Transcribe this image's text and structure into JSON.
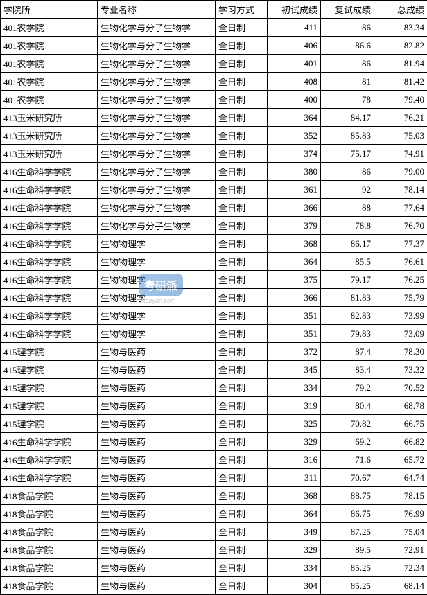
{
  "table": {
    "headers": {
      "school": "学院所",
      "major": "专业名称",
      "mode": "学习方式",
      "score1": "初试成绩",
      "score2": "复试成绩",
      "score3": "总成绩"
    },
    "rows": [
      {
        "school": "401农学院",
        "major": "生物化学与分子生物学",
        "mode": "全日制",
        "score1": "411",
        "score2": "86",
        "score3": "83.34"
      },
      {
        "school": "401农学院",
        "major": "生物化学与分子生物学",
        "mode": "全日制",
        "score1": "406",
        "score2": "86.6",
        "score3": "82.82"
      },
      {
        "school": "401农学院",
        "major": "生物化学与分子生物学",
        "mode": "全日制",
        "score1": "401",
        "score2": "86",
        "score3": "81.94"
      },
      {
        "school": "401农学院",
        "major": "生物化学与分子生物学",
        "mode": "全日制",
        "score1": "408",
        "score2": "81",
        "score3": "81.42"
      },
      {
        "school": "401农学院",
        "major": "生物化学与分子生物学",
        "mode": "全日制",
        "score1": "400",
        "score2": "78",
        "score3": "79.40"
      },
      {
        "school": "413玉米研究所",
        "major": "生物化学与分子生物学",
        "mode": "全日制",
        "score1": "364",
        "score2": "84.17",
        "score3": "76.21"
      },
      {
        "school": "413玉米研究所",
        "major": "生物化学与分子生物学",
        "mode": "全日制",
        "score1": "352",
        "score2": "85.83",
        "score3": "75.03"
      },
      {
        "school": "413玉米研究所",
        "major": "生物化学与分子生物学",
        "mode": "全日制",
        "score1": "374",
        "score2": "75.17",
        "score3": "74.91"
      },
      {
        "school": "416生命科学学院",
        "major": "生物化学与分子生物学",
        "mode": "全日制",
        "score1": "380",
        "score2": "86",
        "score3": "79.00"
      },
      {
        "school": "416生命科学学院",
        "major": "生物化学与分子生物学",
        "mode": "全日制",
        "score1": "361",
        "score2": "92",
        "score3": "78.14"
      },
      {
        "school": "416生命科学学院",
        "major": "生物化学与分子生物学",
        "mode": "全日制",
        "score1": "366",
        "score2": "88",
        "score3": "77.64"
      },
      {
        "school": "416生命科学学院",
        "major": "生物化学与分子生物学",
        "mode": "全日制",
        "score1": "379",
        "score2": "78.8",
        "score3": "76.70"
      },
      {
        "school": "416生命科学学院",
        "major": "生物物理学",
        "mode": "全日制",
        "score1": "368",
        "score2": "86.17",
        "score3": "77.37"
      },
      {
        "school": "416生命科学学院",
        "major": "生物物理学",
        "mode": "全日制",
        "score1": "364",
        "score2": "85.5",
        "score3": "76.61"
      },
      {
        "school": "416生命科学学院",
        "major": "生物物理学",
        "mode": "全日制",
        "score1": "375",
        "score2": "79.17",
        "score3": "76.25"
      },
      {
        "school": "416生命科学学院",
        "major": "生物物理学",
        "mode": "全日制",
        "score1": "366",
        "score2": "81.83",
        "score3": "75.79"
      },
      {
        "school": "416生命科学学院",
        "major": "生物物理学",
        "mode": "全日制",
        "score1": "351",
        "score2": "82.83",
        "score3": "73.99"
      },
      {
        "school": "416生命科学学院",
        "major": "生物物理学",
        "mode": "全日制",
        "score1": "351",
        "score2": "79.83",
        "score3": "73.09"
      },
      {
        "school": "415理学院",
        "major": "生物与医药",
        "mode": "全日制",
        "score1": "372",
        "score2": "87.4",
        "score3": "78.30"
      },
      {
        "school": "415理学院",
        "major": "生物与医药",
        "mode": "全日制",
        "score1": "345",
        "score2": "83.4",
        "score3": "73.32"
      },
      {
        "school": "415理学院",
        "major": "生物与医药",
        "mode": "全日制",
        "score1": "334",
        "score2": "79.2",
        "score3": "70.52"
      },
      {
        "school": "415理学院",
        "major": "生物与医药",
        "mode": "全日制",
        "score1": "319",
        "score2": "80.4",
        "score3": "68.78"
      },
      {
        "school": "415理学院",
        "major": "生物与医药",
        "mode": "全日制",
        "score1": "325",
        "score2": "70.82",
        "score3": "66.75"
      },
      {
        "school": "416生命科学学院",
        "major": "生物与医药",
        "mode": "全日制",
        "score1": "329",
        "score2": "69.2",
        "score3": "66.82"
      },
      {
        "school": "416生命科学学院",
        "major": "生物与医药",
        "mode": "全日制",
        "score1": "316",
        "score2": "71.6",
        "score3": "65.72"
      },
      {
        "school": "416生命科学学院",
        "major": "生物与医药",
        "mode": "全日制",
        "score1": "311",
        "score2": "70.67",
        "score3": "64.74"
      },
      {
        "school": "418食品学院",
        "major": "生物与医药",
        "mode": "全日制",
        "score1": "368",
        "score2": "88.75",
        "score3": "78.15"
      },
      {
        "school": "418食品学院",
        "major": "生物与医药",
        "mode": "全日制",
        "score1": "364",
        "score2": "86.75",
        "score3": "76.99"
      },
      {
        "school": "418食品学院",
        "major": "生物与医药",
        "mode": "全日制",
        "score1": "349",
        "score2": "87.25",
        "score3": "75.04"
      },
      {
        "school": "418食品学院",
        "major": "生物与医药",
        "mode": "全日制",
        "score1": "329",
        "score2": "89.5",
        "score3": "72.91"
      },
      {
        "school": "418食品学院",
        "major": "生物与医药",
        "mode": "全日制",
        "score1": "334",
        "score2": "85.25",
        "score3": "72.34"
      },
      {
        "school": "418食品学院",
        "major": "生物与医药",
        "mode": "全日制",
        "score1": "304",
        "score2": "85.25",
        "score3": "68.14"
      }
    ]
  },
  "watermark": {
    "main": "考研派",
    "sub": "okaoyan.com"
  }
}
